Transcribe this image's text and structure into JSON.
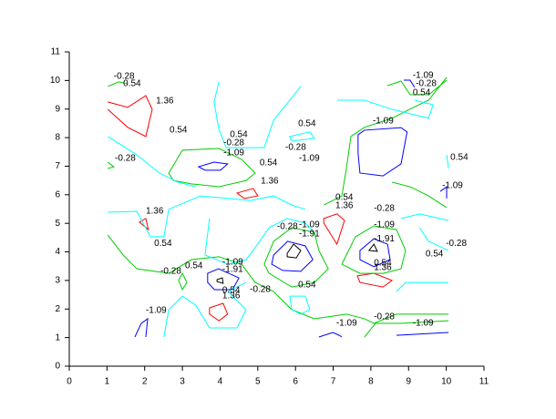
{
  "chart_data": {
    "type": "contour",
    "xlim": [
      0,
      11
    ],
    "ylim": [
      0,
      11
    ],
    "xticks": [
      0,
      1,
      2,
      3,
      4,
      5,
      6,
      7,
      8,
      9,
      10,
      11
    ],
    "yticks": [
      0,
      1,
      2,
      3,
      4,
      5,
      6,
      7,
      8,
      9,
      10,
      11
    ],
    "levels": [
      {
        "value": -1.91,
        "color": "#000000"
      },
      {
        "value": -1.09,
        "color": "#0000ff"
      },
      {
        "value": -0.28,
        "color": "#00cc00"
      },
      {
        "value": 0.54,
        "color": "#00ffff"
      },
      {
        "value": 1.36,
        "color": "#ff0000"
      }
    ],
    "contours": [
      {
        "level": 1.36,
        "closed": false,
        "x": [
          1.02,
          1.55,
          2.03,
          2.2,
          2.03,
          1.55,
          1.02
        ],
        "y": [
          9.25,
          9.06,
          9.47,
          8.99,
          8.04,
          8.36,
          8.99
        ]
      },
      {
        "level": 1.36,
        "closed": true,
        "x": [
          4.45,
          4.88,
          5.0,
          4.64
        ],
        "y": [
          6.06,
          6.22,
          5.96,
          5.87
        ]
      },
      {
        "level": 1.36,
        "closed": true,
        "x": [
          1.86,
          2.03,
          2.1
        ],
        "y": [
          5.04,
          5.17,
          4.78
        ]
      },
      {
        "level": 1.36,
        "closed": true,
        "x": [
          6.75,
          7.1,
          7.3,
          7.1,
          6.75
        ],
        "y": [
          5.17,
          5.33,
          5.1,
          4.27,
          5.01
        ]
      },
      {
        "level": 1.36,
        "closed": true,
        "x": [
          7.64,
          8.08,
          8.56,
          8.32,
          7.71
        ],
        "y": [
          3.16,
          3.25,
          3.0,
          2.77,
          2.93
        ]
      },
      {
        "level": 1.36,
        "closed": true,
        "x": [
          3.72,
          4.08,
          4.2,
          3.97,
          3.72
        ],
        "y": [
          2.04,
          2.2,
          1.82,
          1.59,
          1.82
        ]
      },
      {
        "level": -1.09,
        "closed": true,
        "x": [
          3.43,
          3.84,
          4.2,
          4.01,
          3.6
        ],
        "y": [
          6.98,
          7.14,
          7.08,
          6.86,
          6.86
        ]
      },
      {
        "level": -1.09,
        "closed": true,
        "x": [
          7.66,
          7.83,
          8.8,
          8.96,
          8.8,
          8.32,
          7.71,
          7.66
        ],
        "y": [
          8.1,
          8.26,
          8.35,
          8.2,
          7.08,
          6.66,
          6.76,
          7.46
        ]
      },
      {
        "level": -1.09,
        "closed": true,
        "x": [
          5.42,
          5.79,
          6.26,
          6.46,
          6.14,
          5.66,
          5.37
        ],
        "y": [
          3.89,
          4.37,
          4.21,
          3.73,
          3.32,
          3.35,
          3.57
        ]
      },
      {
        "level": -1.09,
        "closed": true,
        "x": [
          7.71,
          8.08,
          8.44,
          8.51,
          8.08,
          7.71
        ],
        "y": [
          4.05,
          4.46,
          4.27,
          3.73,
          3.48,
          3.73
        ]
      },
      {
        "level": -1.09,
        "closed": true,
        "x": [
          3.67,
          3.96,
          4.5,
          4.33,
          3.85,
          3.67
        ],
        "y": [
          3.25,
          3.41,
          3.09,
          2.68,
          2.68,
          2.93
        ]
      },
      {
        "level": -1.09,
        "closed": false,
        "x": [
          1.74,
          1.91,
          2.08,
          2.03
        ],
        "y": [
          1.02,
          1.5,
          1.66,
          1.02
        ]
      },
      {
        "level": -1.09,
        "closed": false,
        "x": [
          6.62,
          6.99,
          7.16,
          7.23
        ],
        "y": [
          1.02,
          1.18,
          1.08,
          1.02
        ]
      },
      {
        "level": -1.09,
        "closed": false,
        "x": [
          8.68,
          10.06
        ],
        "y": [
          1.08,
          1.18
        ]
      },
      {
        "level": -1.09,
        "closed": false,
        "x": [
          8.87,
          9.04,
          9.16
        ],
        "y": [
          10.01,
          10.01,
          9.76
        ]
      },
      {
        "level": -1.09,
        "closed": false,
        "x": [
          9.84,
          10.01,
          10.01
        ],
        "y": [
          6.12,
          6.28,
          5.87
        ]
      },
      {
        "level": -1.91,
        "closed": true,
        "x": [
          5.78,
          5.95,
          6.14,
          6.02,
          5.78
        ],
        "y": [
          3.95,
          4.27,
          4.05,
          3.79,
          3.83
        ]
      },
      {
        "level": -1.91,
        "closed": true,
        "x": [
          7.95,
          8.08,
          8.17
        ],
        "y": [
          4.05,
          4.27,
          4.02
        ]
      },
      {
        "level": -1.91,
        "closed": true,
        "x": [
          3.92,
          4.06,
          4.08,
          3.92
        ],
        "y": [
          3.03,
          3.09,
          2.9,
          2.96
        ]
      },
      {
        "level": -0.28,
        "closed": false,
        "x": [
          1.02,
          1.31,
          1.55
        ],
        "y": [
          9.79,
          9.95,
          9.89
        ]
      },
      {
        "level": -0.28,
        "closed": false,
        "x": [
          1.02,
          1.18,
          1.02
        ],
        "y": [
          7.14,
          6.98,
          6.92
        ]
      },
      {
        "level": -0.28,
        "closed": true,
        "x": [
          2.64,
          3.0,
          3.97,
          4.57,
          4.93,
          4.69,
          3.97,
          3.24,
          2.76
        ],
        "y": [
          6.76,
          7.56,
          7.62,
          7.24,
          6.76,
          6.5,
          6.28,
          6.38,
          6.5
        ]
      },
      {
        "level": -0.28,
        "closed": false,
        "x": [
          6.75,
          7.23,
          7.35,
          7.47,
          7.83,
          8.56,
          9.04,
          9.53,
          10.01
        ],
        "y": [
          5.64,
          5.96,
          6.92,
          8.04,
          8.36,
          8.68,
          9.0,
          9.31,
          10.11
        ]
      },
      {
        "level": -0.28,
        "closed": false,
        "x": [
          8.44,
          8.8,
          9.04,
          9.53,
          10.01
        ],
        "y": [
          9.82,
          9.98,
          9.5,
          9.5,
          10.01
        ]
      },
      {
        "level": -0.28,
        "closed": false,
        "x": [
          8.56,
          9.04,
          9.53,
          10.01
        ],
        "y": [
          6.44,
          6.28,
          5.96,
          5.55
        ]
      },
      {
        "level": -0.28,
        "closed": true,
        "x": [
          5.17,
          5.42,
          5.9,
          6.5,
          6.62,
          6.87,
          6.5,
          5.9,
          5.3
        ],
        "y": [
          3.57,
          4.37,
          4.85,
          4.69,
          4.05,
          3.41,
          2.93,
          2.77,
          3.25
        ]
      },
      {
        "level": -0.28,
        "closed": true,
        "x": [
          7.23,
          7.59,
          8.08,
          8.68,
          8.92,
          8.8,
          8.32,
          7.71
        ],
        "y": [
          3.57,
          4.53,
          4.91,
          4.78,
          4.05,
          3.41,
          3.25,
          3.25
        ]
      },
      {
        "level": -0.28,
        "closed": false,
        "x": [
          1.02,
          1.43,
          1.79,
          2.64,
          3.24,
          3.97,
          4.57,
          4.93,
          5.42,
          5.9,
          6.5,
          7.35,
          7.83,
          8.08,
          8.68,
          10.06
        ],
        "y": [
          4.59,
          3.89,
          3.41,
          3.25,
          3.73,
          3.83,
          3.57,
          2.93,
          2.61,
          1.98,
          1.66,
          1.82,
          1.66,
          1.5,
          1.82,
          1.82
        ]
      },
      {
        "level": -0.28,
        "closed": true,
        "x": [
          3.0,
          3.12,
          3.0,
          2.9
        ],
        "y": [
          3.25,
          2.93,
          2.68,
          3.0
        ]
      },
      {
        "level": -0.28,
        "closed": false,
        "x": [
          7.83,
          8.12,
          8.8,
          10.06
        ],
        "y": [
          1.02,
          1.5,
          1.5,
          1.59
        ]
      },
      {
        "level": 0.54,
        "closed": false,
        "x": [
          3.97,
          3.84,
          3.97,
          4.16,
          5.17,
          5.42,
          6.14
        ],
        "y": [
          9.95,
          9.25,
          8.29,
          7.65,
          7.65,
          8.61,
          9.79
        ]
      },
      {
        "level": 0.54,
        "closed": false,
        "x": [
          1.02,
          1.79,
          2.39,
          2.88,
          3.36
        ],
        "y": [
          8.04,
          7.4,
          6.76,
          6.44,
          6.28
        ]
      },
      {
        "level": 0.54,
        "closed": false,
        "x": [
          1.02,
          1.79,
          2.15,
          2.51,
          2.64,
          3.48,
          4.81,
          5.42,
          5.9,
          6.26
        ],
        "y": [
          5.39,
          5.42,
          4.53,
          4.53,
          5.49,
          5.96,
          5.8,
          5.96,
          5.64,
          5.49
        ]
      },
      {
        "level": 0.54,
        "closed": true,
        "x": [
          5.85,
          6.38,
          6.5,
          5.9
        ],
        "y": [
          8.04,
          8.2,
          7.97,
          7.88
        ]
      },
      {
        "level": 0.54,
        "closed": false,
        "x": [
          7.11,
          7.83,
          8.56,
          9.53,
          9.65,
          9.16
        ],
        "y": [
          9.31,
          9.31,
          8.99,
          8.68,
          9.15,
          9.31
        ]
      },
      {
        "level": 0.54,
        "closed": false,
        "x": [
          10.01,
          10.06
        ],
        "y": [
          7.4,
          6.92
        ]
      },
      {
        "level": 0.54,
        "closed": false,
        "x": [
          2.51,
          2.64,
          3.0,
          3.36,
          3.72,
          4.45,
          4.69,
          4.21,
          4.69
        ],
        "y": [
          1.02,
          1.98,
          2.45,
          2.13,
          1.34,
          1.34,
          1.98,
          2.61,
          2.93
        ]
      },
      {
        "level": 0.54,
        "closed": true,
        "x": [
          5.9,
          5.85,
          6.26,
          6.38,
          6.14
        ],
        "y": [
          1.98,
          2.45,
          2.45,
          1.98,
          1.82
        ]
      },
      {
        "level": 0.54,
        "closed": false,
        "x": [
          8.68,
          8.92,
          10.06
        ],
        "y": [
          2.61,
          2.93,
          2.93
        ]
      },
      {
        "level": 0.54,
        "closed": false,
        "x": [
          3.72,
          3.6,
          4.21,
          4.69,
          5.05,
          5.3,
          5.78,
          6.26,
          6.5
        ],
        "y": [
          5.17,
          3.89,
          3.57,
          3.73,
          4.37,
          4.85,
          5.17,
          5.01,
          4.69
        ]
      },
      {
        "level": 0.54,
        "closed": false,
        "x": [
          8.8,
          9.29,
          10.06
        ],
        "y": [
          5.17,
          5.33,
          5.1
        ]
      },
      {
        "level": 0.54,
        "closed": false,
        "x": [
          9.29,
          9.53,
          10.06
        ],
        "y": [
          4.85,
          4.37,
          4.05
        ]
      }
    ],
    "labels": [
      {
        "value": -0.28,
        "x": 1.18,
        "y": 10.14
      },
      {
        "value": 0.54,
        "x": 1.43,
        "y": 9.89
      },
      {
        "value": 1.36,
        "x": 2.3,
        "y": 9.28
      },
      {
        "value": 0.54,
        "x": 2.66,
        "y": 8.26
      },
      {
        "value": 0.54,
        "x": 4.26,
        "y": 8.1
      },
      {
        "value": -0.28,
        "x": 4.09,
        "y": 7.81
      },
      {
        "value": -1.09,
        "x": 4.09,
        "y": 7.46
      },
      {
        "value": -0.28,
        "x": 1.21,
        "y": 7.27
      },
      {
        "value": 0.54,
        "x": 5.05,
        "y": 7.11
      },
      {
        "value": 0.54,
        "x": 6.07,
        "y": 8.48
      },
      {
        "value": -0.28,
        "x": 5.73,
        "y": 7.65
      },
      {
        "value": -1.09,
        "x": 6.09,
        "y": 7.27
      },
      {
        "value": -1.09,
        "x": 8.05,
        "y": 8.58
      },
      {
        "value": -1.09,
        "x": 9.11,
        "y": 10.17
      },
      {
        "value": -0.28,
        "x": 9.19,
        "y": 9.89
      },
      {
        "value": 0.54,
        "x": 9.11,
        "y": 9.57
      },
      {
        "value": 0.54,
        "x": 10.11,
        "y": 7.3
      },
      {
        "value": -1.09,
        "x": 9.89,
        "y": 6.31
      },
      {
        "value": 1.36,
        "x": 5.08,
        "y": 6.47
      },
      {
        "value": 0.54,
        "x": 7.06,
        "y": 5.9
      },
      {
        "value": 1.36,
        "x": 7.06,
        "y": 5.61
      },
      {
        "value": -0.28,
        "x": 8.08,
        "y": 5.52
      },
      {
        "value": -1.09,
        "x": 8.08,
        "y": 4.94
      },
      {
        "value": -1.91,
        "x": 8.08,
        "y": 4.46
      },
      {
        "value": -0.28,
        "x": 9.99,
        "y": 4.3
      },
      {
        "value": 0.54,
        "x": 9.45,
        "y": 3.92
      },
      {
        "value": 0.54,
        "x": 8.08,
        "y": 3.6
      },
      {
        "value": 1.36,
        "x": 8.08,
        "y": 3.44
      },
      {
        "value": -0.28,
        "x": 5.51,
        "y": 4.88
      },
      {
        "value": -1.09,
        "x": 6.09,
        "y": 4.94
      },
      {
        "value": -1.91,
        "x": 6.09,
        "y": 4.62
      },
      {
        "value": 1.36,
        "x": 2.03,
        "y": 5.42
      },
      {
        "value": 0.54,
        "x": 2.25,
        "y": 4.3
      },
      {
        "value": -0.28,
        "x": 2.42,
        "y": 3.32
      },
      {
        "value": 0.54,
        "x": 3.07,
        "y": 3.51
      },
      {
        "value": -1.09,
        "x": 4.06,
        "y": 3.64
      },
      {
        "value": -1.91,
        "x": 4.06,
        "y": 3.38
      },
      {
        "value": 0.54,
        "x": 4.06,
        "y": 2.65
      },
      {
        "value": 1.36,
        "x": 4.06,
        "y": 2.46
      },
      {
        "value": -0.28,
        "x": 4.79,
        "y": 2.68
      },
      {
        "value": 0.54,
        "x": 6.07,
        "y": 2.84
      },
      {
        "value": -1.09,
        "x": 2.03,
        "y": 1.95
      },
      {
        "value": -1.09,
        "x": 7.08,
        "y": 1.5
      },
      {
        "value": -0.28,
        "x": 8.08,
        "y": 1.72
      },
      {
        "value": -1.09,
        "x": 9.11,
        "y": 1.5
      }
    ]
  }
}
